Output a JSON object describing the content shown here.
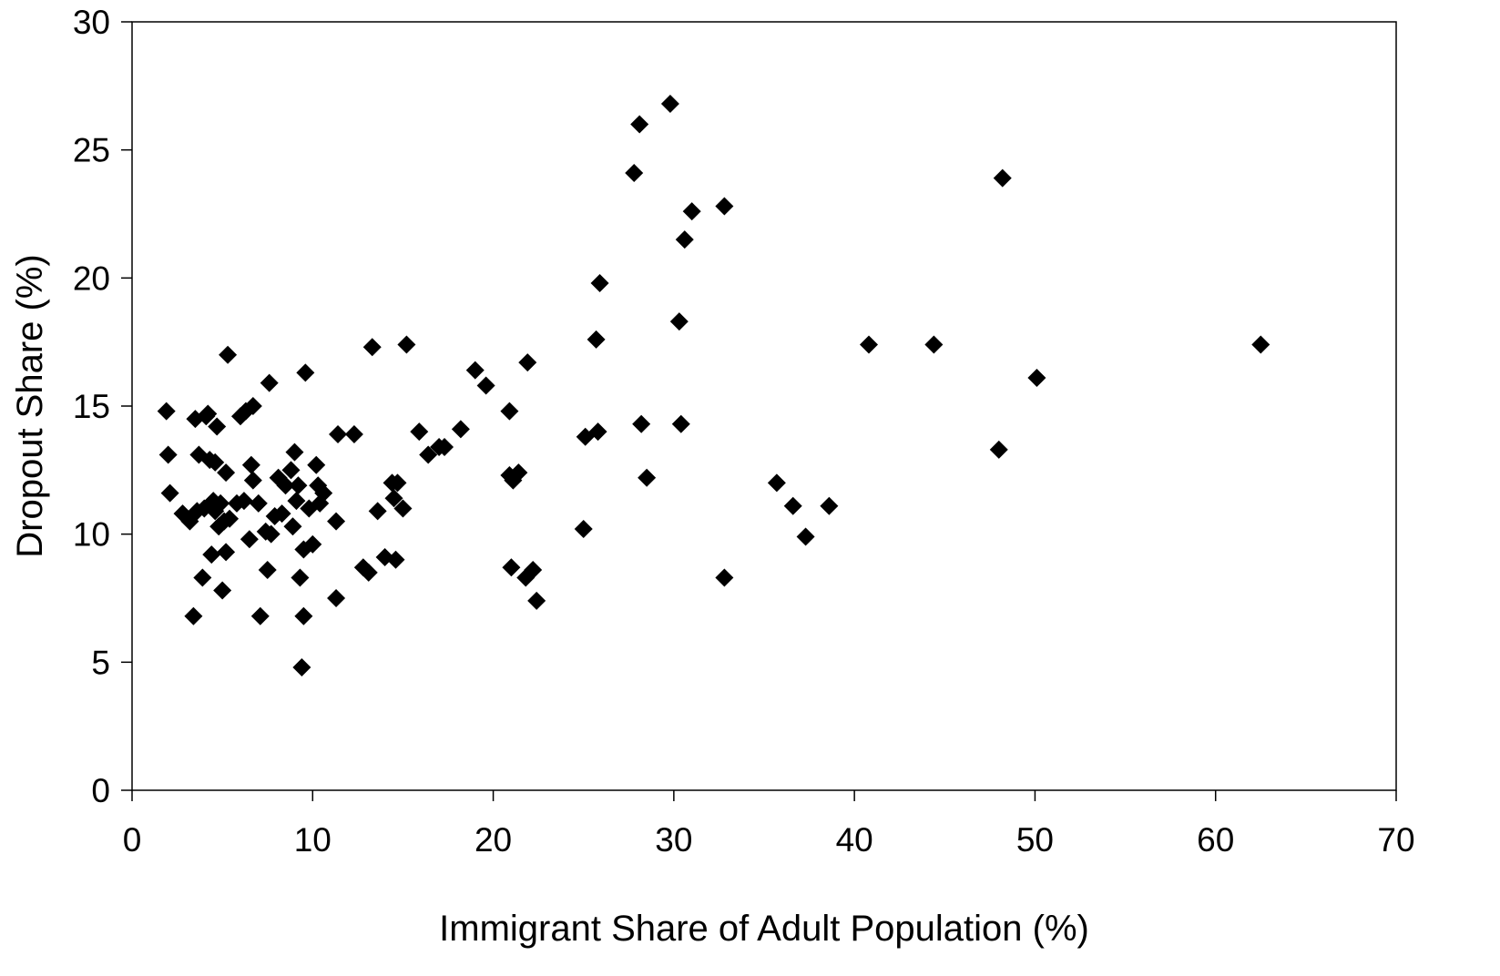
{
  "chart_data": {
    "type": "scatter",
    "title": "",
    "xlabel": "Immigrant Share of Adult Population (%)",
    "ylabel": "Dropout Share (%)",
    "xlim": [
      0,
      70
    ],
    "ylim": [
      0,
      30
    ],
    "xticks": [
      "0",
      "10",
      "20",
      "30",
      "40",
      "50",
      "60",
      "70"
    ],
    "yticks": [
      "0",
      "5",
      "10",
      "15",
      "20",
      "25",
      "30"
    ],
    "grid": false,
    "marker": "diamond",
    "marker_color": "#000000",
    "points": [
      [
        1.9,
        14.8
      ],
      [
        2.0,
        13.1
      ],
      [
        2.1,
        11.6
      ],
      [
        2.8,
        10.8
      ],
      [
        3.2,
        10.5
      ],
      [
        3.4,
        6.8
      ],
      [
        3.5,
        14.5
      ],
      [
        3.6,
        10.9
      ],
      [
        3.7,
        13.1
      ],
      [
        3.9,
        8.3
      ],
      [
        4.0,
        11.0
      ],
      [
        4.1,
        14.6
      ],
      [
        4.2,
        14.7
      ],
      [
        4.3,
        12.9
      ],
      [
        4.4,
        9.2
      ],
      [
        4.5,
        11.3
      ],
      [
        4.6,
        12.8
      ],
      [
        4.6,
        10.9
      ],
      [
        4.7,
        14.2
      ],
      [
        4.8,
        10.3
      ],
      [
        4.9,
        11.2
      ],
      [
        5.0,
        7.8
      ],
      [
        5.1,
        10.5
      ],
      [
        5.2,
        9.3
      ],
      [
        5.2,
        12.4
      ],
      [
        5.3,
        17.0
      ],
      [
        5.4,
        10.6
      ],
      [
        5.8,
        11.2
      ],
      [
        6.0,
        14.6
      ],
      [
        6.2,
        11.3
      ],
      [
        6.3,
        14.8
      ],
      [
        6.5,
        9.8
      ],
      [
        6.6,
        12.7
      ],
      [
        6.7,
        12.1
      ],
      [
        6.7,
        15.0
      ],
      [
        7.0,
        11.2
      ],
      [
        7.1,
        6.8
      ],
      [
        7.4,
        10.1
      ],
      [
        7.5,
        8.6
      ],
      [
        7.6,
        15.9
      ],
      [
        7.7,
        10.0
      ],
      [
        7.9,
        10.7
      ],
      [
        8.1,
        12.2
      ],
      [
        8.3,
        10.8
      ],
      [
        8.5,
        11.9
      ],
      [
        8.8,
        12.5
      ],
      [
        8.9,
        10.3
      ],
      [
        9.0,
        13.2
      ],
      [
        9.1,
        11.3
      ],
      [
        9.2,
        11.9
      ],
      [
        9.3,
        8.3
      ],
      [
        9.4,
        4.8
      ],
      [
        9.5,
        9.4
      ],
      [
        9.5,
        6.8
      ],
      [
        9.6,
        16.3
      ],
      [
        9.8,
        11.0
      ],
      [
        10.0,
        9.6
      ],
      [
        10.2,
        12.7
      ],
      [
        10.3,
        11.9
      ],
      [
        10.4,
        11.2
      ],
      [
        10.6,
        11.6
      ],
      [
        11.3,
        10.5
      ],
      [
        11.3,
        7.5
      ],
      [
        11.4,
        13.9
      ],
      [
        12.3,
        13.9
      ],
      [
        12.8,
        8.7
      ],
      [
        13.1,
        8.5
      ],
      [
        13.3,
        17.3
      ],
      [
        13.6,
        10.9
      ],
      [
        14.0,
        9.1
      ],
      [
        14.4,
        12.0
      ],
      [
        14.5,
        11.4
      ],
      [
        14.6,
        9.0
      ],
      [
        14.7,
        12.0
      ],
      [
        15.0,
        11.0
      ],
      [
        15.2,
        17.4
      ],
      [
        15.9,
        14.0
      ],
      [
        16.4,
        13.1
      ],
      [
        17.0,
        13.4
      ],
      [
        17.3,
        13.4
      ],
      [
        18.2,
        14.1
      ],
      [
        19.0,
        16.4
      ],
      [
        19.6,
        15.8
      ],
      [
        20.9,
        12.3
      ],
      [
        20.9,
        14.8
      ],
      [
        21.0,
        8.7
      ],
      [
        21.1,
        12.1
      ],
      [
        21.4,
        12.4
      ],
      [
        21.8,
        8.3
      ],
      [
        21.9,
        16.7
      ],
      [
        22.2,
        8.6
      ],
      [
        22.4,
        7.4
      ],
      [
        25.0,
        10.2
      ],
      [
        25.1,
        13.8
      ],
      [
        25.7,
        17.6
      ],
      [
        25.8,
        14.0
      ],
      [
        25.9,
        19.8
      ],
      [
        27.8,
        24.1
      ],
      [
        28.1,
        26.0
      ],
      [
        28.2,
        14.3
      ],
      [
        28.5,
        12.2
      ],
      [
        29.8,
        26.8
      ],
      [
        30.3,
        18.3
      ],
      [
        30.4,
        14.3
      ],
      [
        30.6,
        21.5
      ],
      [
        31.0,
        22.6
      ],
      [
        32.8,
        22.8
      ],
      [
        32.8,
        8.3
      ],
      [
        35.7,
        12.0
      ],
      [
        36.6,
        11.1
      ],
      [
        37.3,
        9.9
      ],
      [
        38.6,
        11.1
      ],
      [
        40.8,
        17.4
      ],
      [
        44.4,
        17.4
      ],
      [
        48.0,
        13.3
      ],
      [
        48.2,
        23.9
      ],
      [
        50.1,
        16.1
      ],
      [
        62.5,
        17.4
      ]
    ]
  }
}
